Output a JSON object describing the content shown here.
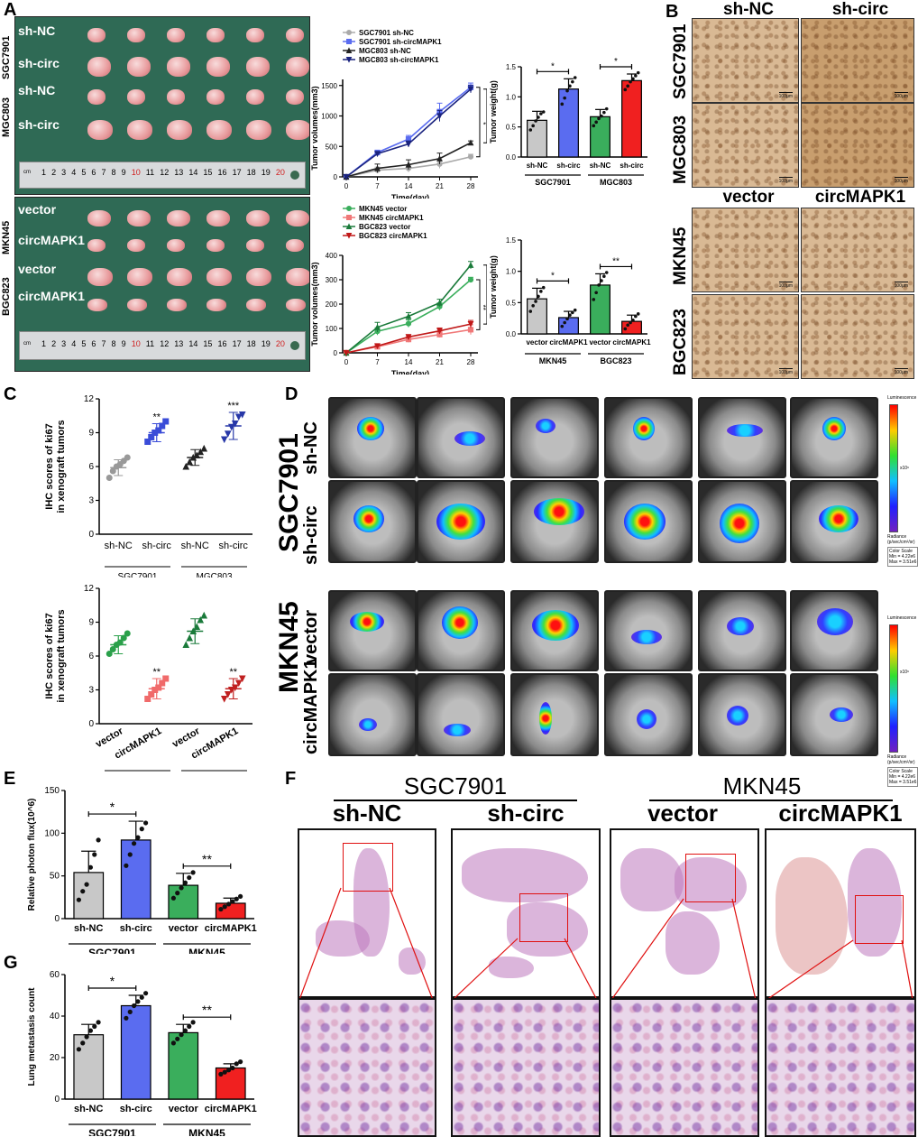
{
  "panels": {
    "A": "A",
    "B": "B",
    "C": "C",
    "D": "D",
    "E": "E",
    "F": "F",
    "G": "G"
  },
  "colors": {
    "grey": "#c8c8c8",
    "blue": "#5a6cf0",
    "green": "#3aae5c",
    "red": "#f02020",
    "pink": "#f07878",
    "darkgreen": "#1a7a3a",
    "darkred": "#c01818",
    "black": "#222222",
    "navy": "#1a237e"
  },
  "panelA": {
    "photo_labels_top": [
      "sh-NC",
      "sh-circ",
      "sh-NC",
      "sh-circ"
    ],
    "photo_side_top": [
      "SGC7901",
      "MGC803"
    ],
    "photo_labels_bottom": [
      "vector",
      "circMAPK1",
      "vector",
      "circMAPK1"
    ],
    "photo_side_bottom": [
      "MKN45",
      "BGC823"
    ],
    "ruler_numbers": [
      "1",
      "2",
      "3",
      "4",
      "5",
      "6",
      "7",
      "8",
      "9",
      "10",
      "11",
      "12",
      "13",
      "14",
      "15",
      "16",
      "17",
      "18",
      "19",
      "20"
    ],
    "ruler_cm": "cm"
  },
  "chart_data": [
    {
      "id": "A-volume-top",
      "type": "line",
      "xlabel": "Time(day)",
      "ylabel": "Tumor volumes(mm3)",
      "x": [
        0,
        7,
        14,
        21,
        28
      ],
      "xticks": [
        "0",
        "7",
        "14",
        "21",
        "28"
      ],
      "yticks": [
        "0",
        "500",
        "1000",
        "1500"
      ],
      "ylim": [
        0,
        1600
      ],
      "series": [
        {
          "name": "SGC7901  sh-NC",
          "color": "#aaaaaa",
          "marker": "circle",
          "values": [
            0,
            110,
            140,
            210,
            330
          ],
          "err": [
            0,
            50,
            60,
            70,
            40
          ]
        },
        {
          "name": "SGC7901  sh-circMAPK1",
          "color": "#5a6cf0",
          "marker": "square",
          "values": [
            0,
            400,
            620,
            1070,
            1470
          ],
          "err": [
            0,
            30,
            60,
            140,
            70
          ]
        },
        {
          "name": "MGC803   sh-NC",
          "color": "#222222",
          "marker": "triangle",
          "values": [
            0,
            140,
            200,
            300,
            560
          ],
          "err": [
            0,
            70,
            80,
            90,
            30
          ]
        },
        {
          "name": "MGC803   sh-circMAPK1",
          "color": "#1a237e",
          "marker": "tri-down",
          "values": [
            0,
            380,
            540,
            1000,
            1440
          ],
          "err": [
            0,
            30,
            50,
            90,
            60
          ]
        }
      ],
      "annotations": [
        "*",
        "**"
      ]
    },
    {
      "id": "A-weight-top",
      "type": "bar",
      "ylabel": "Tumor weight(g)",
      "categories": [
        "sh-NC",
        "sh-circ",
        "sh-NC",
        "sh-circ"
      ],
      "groups": [
        "SGC7901",
        "MGC803"
      ],
      "values": [
        0.61,
        1.13,
        0.67,
        1.27
      ],
      "err": [
        0.15,
        0.17,
        0.12,
        0.11
      ],
      "colors": [
        "#c8c8c8",
        "#5a6cf0",
        "#3aae5c",
        "#f02020"
      ],
      "yticks": [
        "0.0",
        "0.5",
        "1.0",
        "1.5"
      ],
      "ylim": [
        0,
        1.5
      ],
      "points": [
        [
          0.45,
          0.52,
          0.6,
          0.66,
          0.72,
          0.75
        ],
        [
          0.88,
          0.98,
          1.1,
          1.18,
          1.25,
          1.32
        ],
        [
          0.52,
          0.58,
          0.64,
          0.68,
          0.74,
          0.8
        ],
        [
          1.12,
          1.18,
          1.25,
          1.3,
          1.35,
          1.4
        ]
      ],
      "sig": [
        {
          "pair": [
            0,
            1
          ],
          "label": "*"
        },
        {
          "pair": [
            2,
            3
          ],
          "label": "*"
        }
      ]
    },
    {
      "id": "A-volume-bottom",
      "type": "line",
      "xlabel": "Time(day)",
      "ylabel": "Tumor volumes(mm3)",
      "x": [
        0,
        7,
        14,
        21,
        28
      ],
      "xticks": [
        "0",
        "7",
        "14",
        "21",
        "28"
      ],
      "yticks": [
        "0",
        "100",
        "200",
        "300",
        "400"
      ],
      "ylim": [
        0,
        400
      ],
      "series": [
        {
          "name": "MKN45  vector",
          "color": "#3aae5c",
          "marker": "circle",
          "values": [
            0,
            88,
            120,
            190,
            300
          ],
          "err": [
            0,
            15,
            15,
            15,
            10
          ]
        },
        {
          "name": "MKN45  circMAPK1",
          "color": "#f07878",
          "marker": "square",
          "values": [
            0,
            25,
            55,
            75,
            95
          ],
          "err": [
            0,
            8,
            12,
            12,
            20
          ]
        },
        {
          "name": "BGC823 vector",
          "color": "#1a7a3a",
          "marker": "triangle",
          "values": [
            0,
            105,
            150,
            205,
            360
          ],
          "err": [
            0,
            20,
            15,
            15,
            15
          ]
        },
        {
          "name": "BGC823 circMAPK1",
          "color": "#c01818",
          "marker": "tri-down",
          "values": [
            0,
            28,
            65,
            90,
            118
          ],
          "err": [
            0,
            8,
            10,
            12,
            15
          ]
        }
      ],
      "annotations": [
        "**",
        "**"
      ]
    },
    {
      "id": "A-weight-bottom",
      "type": "bar",
      "ylabel": "Tumor weight(g)",
      "categories": [
        "vector",
        "circMAPK1",
        "vector",
        "circMAPK1"
      ],
      "groups": [
        "MKN45",
        "BGC823"
      ],
      "values": [
        0.56,
        0.26,
        0.78,
        0.2
      ],
      "err": [
        0.17,
        0.1,
        0.18,
        0.1
      ],
      "colors": [
        "#c8c8c8",
        "#5a6cf0",
        "#3aae5c",
        "#f02020"
      ],
      "yticks": [
        "0.0",
        "0.5",
        "1.0",
        "1.5"
      ],
      "ylim": [
        0,
        1.5
      ],
      "points": [
        [
          0.36,
          0.45,
          0.52,
          0.6,
          0.68,
          0.74
        ],
        [
          0.12,
          0.18,
          0.24,
          0.3,
          0.34,
          0.38
        ],
        [
          0.55,
          0.66,
          0.78,
          0.85,
          0.92,
          0.98
        ],
        [
          0.08,
          0.14,
          0.18,
          0.22,
          0.28,
          0.32
        ]
      ],
      "sig": [
        {
          "pair": [
            0,
            1
          ],
          "label": "*"
        },
        {
          "pair": [
            2,
            3
          ],
          "label": "**"
        }
      ]
    },
    {
      "id": "C-top",
      "type": "scatter",
      "ylabel": "IHC scores of ki67\nin xenograft tumors",
      "categories": [
        "sh-NC",
        "sh-circ",
        "sh-NC",
        "sh-circ"
      ],
      "groups": [
        "SGC7901",
        "MGC803"
      ],
      "yticks": [
        "0",
        "3",
        "6",
        "9",
        "12"
      ],
      "ylim": [
        0,
        12
      ],
      "means": [
        5.9,
        9.0,
        6.8,
        9.6
      ],
      "err": [
        0.7,
        0.8,
        0.7,
        1.2
      ],
      "colors": [
        "#999999",
        "#3a4cd8",
        "#222222",
        "#2838a8"
      ],
      "markers": [
        "circle",
        "square",
        "triangle",
        "tri-down"
      ],
      "points": [
        [
          5,
          5.6,
          6,
          6.2,
          6.5,
          6.8
        ],
        [
          8.2,
          8.6,
          9,
          9.2,
          9.6,
          10
        ],
        [
          6,
          6.4,
          6.8,
          7,
          7.3,
          7.6
        ],
        [
          8.4,
          8.9,
          9.5,
          9.8,
          10.4,
          10.6
        ]
      ],
      "sig": [
        "",
        "**",
        "",
        "***"
      ]
    },
    {
      "id": "C-bottom",
      "type": "scatter",
      "ylabel": "IHC scores of ki67\nin xenograft tumors",
      "categories": [
        "vector",
        "circMAPK1",
        "vector",
        "circMAPK1"
      ],
      "groups": [
        "MKN45",
        "BGC823"
      ],
      "yticks": [
        "0",
        "3",
        "6",
        "9",
        "12"
      ],
      "ylim": [
        0,
        12
      ],
      "means": [
        7.0,
        3.1,
        8.2,
        3.1
      ],
      "err": [
        0.8,
        0.9,
        1.1,
        0.9
      ],
      "colors": [
        "#2aa04a",
        "#f06a6a",
        "#1a7a3a",
        "#c02020"
      ],
      "markers": [
        "circle",
        "square",
        "triangle",
        "tri-down"
      ],
      "points": [
        [
          6.2,
          6.6,
          7,
          7.2,
          7.6,
          8
        ],
        [
          2.2,
          2.6,
          3,
          3.2,
          3.6,
          4
        ],
        [
          7,
          7.6,
          8.2,
          8.6,
          9.2,
          9.6
        ],
        [
          2.2,
          2.6,
          3,
          3.2,
          3.6,
          4
        ]
      ],
      "sig": [
        "",
        "**",
        "",
        "**"
      ]
    },
    {
      "id": "E",
      "type": "bar",
      "ylabel": "Relative photon flux(10^6)",
      "categories": [
        "sh-NC",
        "sh-circ",
        "vector",
        "circMAPK1"
      ],
      "groups": [
        "SGC7901",
        "MKN45"
      ],
      "values": [
        54,
        92,
        39,
        18
      ],
      "err": [
        25,
        22,
        14,
        6
      ],
      "colors": [
        "#c8c8c8",
        "#5a6cf0",
        "#3aae5c",
        "#f02020"
      ],
      "yticks": [
        "0",
        "50",
        "100",
        "150"
      ],
      "ylim": [
        0,
        150
      ],
      "points": [
        [
          22,
          32,
          40,
          60,
          75,
          92
        ],
        [
          62,
          75,
          88,
          95,
          105,
          112
        ],
        [
          24,
          30,
          36,
          42,
          48,
          54
        ],
        [
          11,
          14,
          17,
          20,
          23,
          26
        ]
      ],
      "sig": [
        {
          "pair": [
            0,
            1
          ],
          "label": "*"
        },
        {
          "pair": [
            2,
            3
          ],
          "label": "**"
        }
      ]
    },
    {
      "id": "G",
      "type": "bar",
      "ylabel": "Lung metastasis count",
      "categories": [
        "sh-NC",
        "sh-circ",
        "vector",
        "circMAPK1"
      ],
      "groups": [
        "SGC7901",
        "MKN45"
      ],
      "values": [
        31,
        45,
        32,
        15
      ],
      "err": [
        5,
        5,
        4,
        2
      ],
      "colors": [
        "#c8c8c8",
        "#5a6cf0",
        "#3aae5c",
        "#f02020"
      ],
      "yticks": [
        "0",
        "20",
        "40",
        "60"
      ],
      "ylim": [
        0,
        60
      ],
      "points": [
        [
          24,
          27,
          30,
          33,
          35,
          37
        ],
        [
          39,
          42,
          45,
          47,
          49,
          51
        ],
        [
          27,
          29,
          31,
          33,
          35,
          37
        ],
        [
          12,
          13,
          14,
          15,
          17,
          18
        ]
      ],
      "sig": [
        {
          "pair": [
            0,
            1
          ],
          "label": "*"
        },
        {
          "pair": [
            2,
            3
          ],
          "label": "**"
        }
      ]
    }
  ],
  "panelB": {
    "top_cols": [
      "sh-NC",
      "sh-circ"
    ],
    "top_rows": [
      "SGC7901",
      "MGC803"
    ],
    "bottom_cols": [
      "vector",
      "circMAPK1"
    ],
    "bottom_rows": [
      "MKN45",
      "BGC823"
    ],
    "scale": "100μm"
  },
  "panelD": {
    "top_side": "SGC7901",
    "top_rows": [
      "sh-NC",
      "sh-circ"
    ],
    "bottom_side": "MKN45",
    "bottom_rows": [
      "vector",
      "circMAPK1"
    ],
    "legend_title": "Luminescence",
    "legend_unit": "Radiance\n(p/sec/cm²/sr)",
    "legend_scale": "Color Scale\nMin = 4.22e6\nMax = 3.51e6",
    "legend_exp": "x10⁶"
  },
  "panelF": {
    "group1": "SGC7901",
    "group2": "MKN45",
    "cols": [
      "sh-NC",
      "sh-circ",
      "vector",
      "circMAPK1"
    ]
  }
}
